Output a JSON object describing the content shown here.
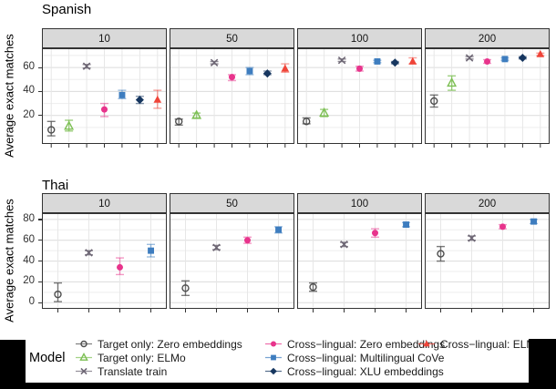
{
  "series_defs": {
    "target_zero": {
      "label": "Target only: Zero embeddings",
      "color": "#4d4d4d",
      "shape": "circle",
      "style": "open"
    },
    "target_elmo": {
      "label": "Target only: ELMo",
      "color": "#7CBF53",
      "shape": "triangle",
      "style": "open"
    },
    "translate_train": {
      "label": "Translate train",
      "color": "#6B6472",
      "shape": "x",
      "style": "open"
    },
    "cl_zero": {
      "label": "Cross−lingual: Zero embeddings",
      "color": "#E8348C",
      "shape": "circle",
      "style": "solid"
    },
    "cl_cove": {
      "label": "Cross−lingual: Multilingual CoVe",
      "color": "#3E7DBF",
      "shape": "square",
      "style": "solid"
    },
    "cl_xlu": {
      "label": "Cross−lingual: XLU embeddings",
      "color": "#16365F",
      "shape": "diamond",
      "style": "solid"
    },
    "cl_elmo": {
      "label": "Cross−lingual: ELMo",
      "color": "#EF4438",
      "shape": "triangle",
      "style": "solid"
    }
  },
  "legend": {
    "title": "Model",
    "columns": [
      [
        "target_zero",
        "target_elmo",
        "translate_train"
      ],
      [
        "cl_zero",
        "cl_cove",
        "cl_xlu"
      ],
      [
        "cl_elmo"
      ]
    ]
  },
  "chart_data": [
    {
      "type": "scatter",
      "row_title": "Spanish",
      "ylabel": "Average exact matches",
      "ylim": [
        -3,
        76
      ],
      "yticks": [
        20,
        40,
        60
      ],
      "slots": 7,
      "grid": true,
      "facets": [
        {
          "label": "10",
          "points": [
            {
              "series": "target_zero",
              "y": 8,
              "lo": 3,
              "hi": 15
            },
            {
              "series": "target_elmo",
              "y": 11,
              "lo": 7,
              "hi": 16
            },
            {
              "series": "translate_train",
              "y": 61,
              "lo": 59.5,
              "hi": 62.5
            },
            {
              "series": "cl_zero",
              "y": 25,
              "lo": 19,
              "hi": 30
            },
            {
              "series": "cl_cove",
              "y": 37,
              "lo": 34,
              "hi": 41
            },
            {
              "series": "cl_xlu",
              "y": 33,
              "lo": 30,
              "hi": 36
            },
            {
              "series": "cl_elmo",
              "y": 33,
              "lo": 26,
              "hi": 41
            }
          ]
        },
        {
          "label": "50",
          "points": [
            {
              "series": "target_zero",
              "y": 15,
              "lo": 12,
              "hi": 17
            },
            {
              "series": "target_elmo",
              "y": 20,
              "lo": 18,
              "hi": 22
            },
            {
              "series": "translate_train",
              "y": 64,
              "lo": 63,
              "hi": 65
            },
            {
              "series": "cl_zero",
              "y": 52,
              "lo": 49,
              "hi": 54
            },
            {
              "series": "cl_cove",
              "y": 57,
              "lo": 54,
              "hi": 60
            },
            {
              "series": "cl_xlu",
              "y": 55,
              "lo": 54,
              "hi": 57
            },
            {
              "series": "cl_elmo",
              "y": 59,
              "lo": 56,
              "hi": 63
            }
          ]
        },
        {
          "label": "100",
          "points": [
            {
              "series": "target_zero",
              "y": 15,
              "lo": 13,
              "hi": 18
            },
            {
              "series": "target_elmo",
              "y": 22,
              "lo": 19,
              "hi": 25
            },
            {
              "series": "translate_train",
              "y": 66,
              "lo": 65,
              "hi": 67
            },
            {
              "series": "cl_zero",
              "y": 59,
              "lo": 57,
              "hi": 61
            },
            {
              "series": "cl_cove",
              "y": 65,
              "lo": 64,
              "hi": 66
            },
            {
              "series": "cl_xlu",
              "y": 64,
              "lo": 63,
              "hi": 65
            },
            {
              "series": "cl_elmo",
              "y": 65,
              "lo": 63,
              "hi": 68
            }
          ]
        },
        {
          "label": "200",
          "points": [
            {
              "series": "target_zero",
              "y": 32,
              "lo": 27,
              "hi": 37
            },
            {
              "series": "target_elmo",
              "y": 47,
              "lo": 41,
              "hi": 53
            },
            {
              "series": "translate_train",
              "y": 68,
              "lo": 67,
              "hi": 69
            },
            {
              "series": "cl_zero",
              "y": 65,
              "lo": 63.5,
              "hi": 66.5
            },
            {
              "series": "cl_cove",
              "y": 67,
              "lo": 66,
              "hi": 68
            },
            {
              "series": "cl_xlu",
              "y": 68,
              "lo": 67,
              "hi": 69
            },
            {
              "series": "cl_elmo",
              "y": 71,
              "lo": 70,
              "hi": 72
            }
          ]
        }
      ]
    },
    {
      "type": "scatter",
      "row_title": "Thai",
      "ylabel": "Average exact matches",
      "ylim": [
        -5,
        86
      ],
      "yticks": [
        0,
        20,
        40,
        60,
        80
      ],
      "slots": 4,
      "grid": true,
      "facets": [
        {
          "label": "10",
          "points": [
            {
              "series": "target_zero",
              "y": 8,
              "lo": 1,
              "hi": 19
            },
            {
              "series": "translate_train",
              "y": 48,
              "lo": 46,
              "hi": 50
            },
            {
              "series": "cl_zero",
              "y": 34,
              "lo": 27,
              "hi": 43
            },
            {
              "series": "cl_cove",
              "y": 50,
              "lo": 44,
              "hi": 56
            }
          ]
        },
        {
          "label": "50",
          "points": [
            {
              "series": "target_zero",
              "y": 14,
              "lo": 7,
              "hi": 21
            },
            {
              "series": "translate_train",
              "y": 53,
              "lo": 51,
              "hi": 55
            },
            {
              "series": "cl_zero",
              "y": 60,
              "lo": 57,
              "hi": 63
            },
            {
              "series": "cl_cove",
              "y": 70,
              "lo": 67,
              "hi": 73
            }
          ]
        },
        {
          "label": "100",
          "points": [
            {
              "series": "target_zero",
              "y": 15,
              "lo": 11,
              "hi": 19
            },
            {
              "series": "translate_train",
              "y": 56,
              "lo": 54,
              "hi": 58
            },
            {
              "series": "cl_zero",
              "y": 67,
              "lo": 63,
              "hi": 71
            },
            {
              "series": "cl_cove",
              "y": 75,
              "lo": 73,
              "hi": 77
            }
          ]
        },
        {
          "label": "200",
          "points": [
            {
              "series": "target_zero",
              "y": 47,
              "lo": 40,
              "hi": 54
            },
            {
              "series": "translate_train",
              "y": 62,
              "lo": 60,
              "hi": 64
            },
            {
              "series": "cl_zero",
              "y": 73,
              "lo": 71,
              "hi": 75
            },
            {
              "series": "cl_cove",
              "y": 78,
              "lo": 76,
              "hi": 80
            }
          ]
        }
      ]
    }
  ],
  "colors": {
    "strip_fill": "#d9d9d9",
    "panel_border": "#333333",
    "grid_major": "#dcdcdc",
    "grid_minor": "#eeeeee",
    "black_mask": "#000000"
  }
}
